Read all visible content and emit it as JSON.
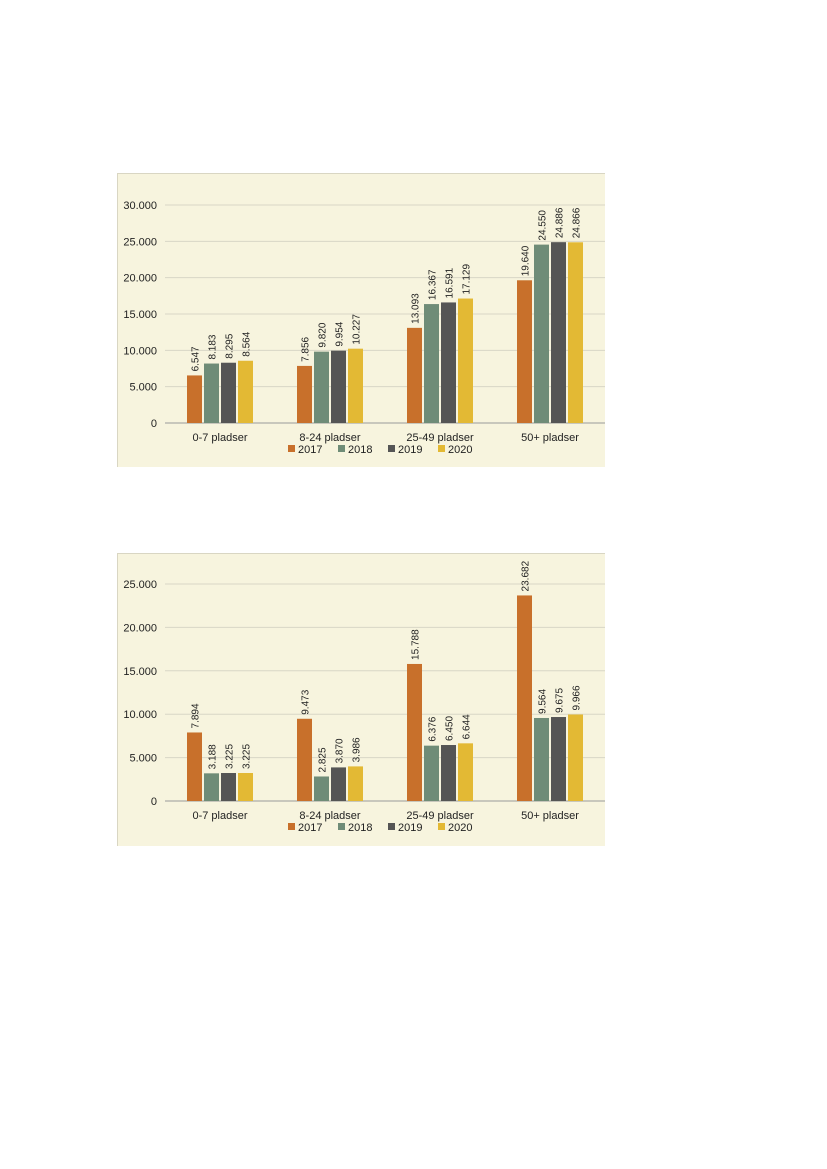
{
  "chart_data": [
    {
      "type": "bar",
      "categories": [
        "0-7 pladser",
        "8-24 pladser",
        "25-49 pladser",
        "50+ pladser"
      ],
      "series": [
        {
          "name": "2017",
          "values": [
            6547,
            7856,
            13093,
            19640
          ],
          "labels": [
            "6.547",
            "7.856",
            "13.093",
            "19.640"
          ],
          "color": "#c8702b"
        },
        {
          "name": "2018",
          "values": [
            8183,
            9820,
            16367,
            24550
          ],
          "labels": [
            "8.183",
            "9.820",
            "16.367",
            "24.550"
          ],
          "color": "#6f8c77"
        },
        {
          "name": "2019",
          "values": [
            8295,
            9954,
            16591,
            24886
          ],
          "labels": [
            "8.295",
            "9.954",
            "16.591",
            "24.886"
          ],
          "color": "#555555"
        },
        {
          "name": "2020",
          "values": [
            8564,
            10227,
            17129,
            24866
          ],
          "labels": [
            "8.564",
            "10.227",
            "17.129",
            "24.866"
          ],
          "color": "#e3b934"
        }
      ],
      "ylim": [
        0,
        30000
      ],
      "yticks": [
        0,
        5000,
        10000,
        15000,
        20000,
        25000,
        30000
      ],
      "ytick_labels": [
        "0",
        "5.000",
        "10.000",
        "15.000",
        "20.000",
        "25.000",
        "30.000"
      ],
      "grid": true,
      "legend": "bottom"
    },
    {
      "type": "bar",
      "categories": [
        "0-7 pladser",
        "8-24 pladser",
        "25-49 pladser",
        "50+ pladser"
      ],
      "series": [
        {
          "name": "2017",
          "values": [
            7894,
            9473,
            15788,
            23682
          ],
          "labels": [
            "7.894",
            "9.473",
            "15.788",
            "23.682"
          ],
          "color": "#c8702b"
        },
        {
          "name": "2018",
          "values": [
            3188,
            2825,
            6376,
            9564
          ],
          "labels": [
            "3.188",
            "2.825",
            "6.376",
            "9.564"
          ],
          "color": "#6f8c77"
        },
        {
          "name": "2019",
          "values": [
            3225,
            3870,
            6450,
            9675
          ],
          "labels": [
            "3.225",
            "3.870",
            "6.450",
            "9.675"
          ],
          "color": "#555555"
        },
        {
          "name": "2020",
          "values": [
            3225,
            3986,
            6644,
            9966
          ],
          "labels": [
            "3.225",
            "3.986",
            "6.644",
            "9.966"
          ],
          "color": "#e3b934"
        }
      ],
      "ylim": [
        0,
        25000
      ],
      "yticks": [
        0,
        5000,
        10000,
        15000,
        20000,
        25000
      ],
      "ytick_labels": [
        "0",
        "5.000",
        "10.000",
        "15.000",
        "20.000",
        "25.000"
      ],
      "grid": true,
      "legend": "bottom"
    }
  ]
}
